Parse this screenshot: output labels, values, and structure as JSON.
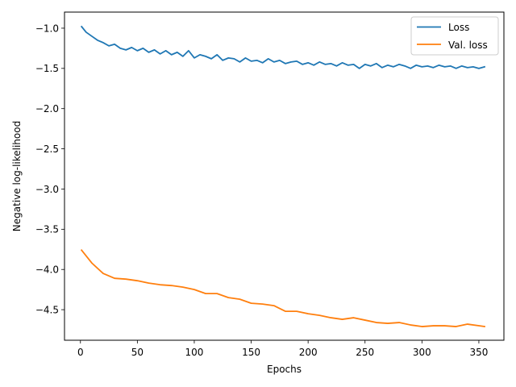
{
  "chart_data": {
    "type": "line",
    "title": "",
    "xlabel": "Epochs",
    "ylabel": "Negative log-likelihood",
    "xlim": [
      -14,
      372
    ],
    "ylim": [
      -4.88,
      -0.8
    ],
    "xticks": [
      0,
      50,
      100,
      150,
      200,
      250,
      300,
      350
    ],
    "yticks": [
      -1.0,
      -1.5,
      -2.0,
      -2.5,
      -3.0,
      -3.5,
      -4.0,
      -4.5
    ],
    "xtick_labels": [
      "0",
      "50",
      "100",
      "150",
      "200",
      "250",
      "300",
      "350"
    ],
    "ytick_labels": [
      "−1.0",
      "−1.5",
      "−2.0",
      "−2.5",
      "−3.0",
      "−3.5",
      "−4.0",
      "−4.5"
    ],
    "grid": false,
    "legend_position": "top-right",
    "series": [
      {
        "name": "Loss",
        "color": "#1f77b4",
        "x": [
          1,
          5,
          10,
          15,
          20,
          25,
          30,
          35,
          40,
          45,
          50,
          55,
          60,
          65,
          70,
          75,
          80,
          85,
          90,
          95,
          100,
          105,
          110,
          115,
          120,
          125,
          130,
          135,
          140,
          145,
          150,
          155,
          160,
          165,
          170,
          175,
          180,
          185,
          190,
          195,
          200,
          205,
          210,
          215,
          220,
          225,
          230,
          235,
          240,
          245,
          250,
          255,
          260,
          265,
          270,
          275,
          280,
          285,
          290,
          295,
          300,
          305,
          310,
          315,
          320,
          325,
          330,
          335,
          340,
          345,
          350,
          355
        ],
        "y": [
          -0.98,
          -1.05,
          -1.1,
          -1.15,
          -1.18,
          -1.22,
          -1.2,
          -1.25,
          -1.27,
          -1.24,
          -1.28,
          -1.25,
          -1.3,
          -1.27,
          -1.32,
          -1.28,
          -1.33,
          -1.3,
          -1.35,
          -1.28,
          -1.37,
          -1.33,
          -1.35,
          -1.38,
          -1.33,
          -1.4,
          -1.37,
          -1.38,
          -1.42,
          -1.37,
          -1.41,
          -1.4,
          -1.43,
          -1.38,
          -1.42,
          -1.4,
          -1.44,
          -1.42,
          -1.41,
          -1.45,
          -1.43,
          -1.46,
          -1.42,
          -1.45,
          -1.44,
          -1.47,
          -1.43,
          -1.46,
          -1.45,
          -1.5,
          -1.45,
          -1.47,
          -1.44,
          -1.49,
          -1.46,
          -1.48,
          -1.45,
          -1.47,
          -1.5,
          -1.46,
          -1.48,
          -1.47,
          -1.49,
          -1.46,
          -1.48,
          -1.47,
          -1.5,
          -1.47,
          -1.49,
          -1.48,
          -1.5,
          -1.48
        ]
      },
      {
        "name": "Val. loss",
        "color": "#ff7f0e",
        "x": [
          1,
          10,
          20,
          30,
          40,
          50,
          60,
          70,
          80,
          90,
          100,
          110,
          120,
          130,
          140,
          150,
          160,
          170,
          180,
          190,
          200,
          210,
          220,
          230,
          240,
          250,
          260,
          270,
          280,
          290,
          300,
          310,
          320,
          330,
          340,
          350,
          355
        ],
        "y": [
          -3.76,
          -3.92,
          -4.05,
          -4.11,
          -4.12,
          -4.14,
          -4.17,
          -4.19,
          -4.2,
          -4.22,
          -4.25,
          -4.3,
          -4.3,
          -4.35,
          -4.37,
          -4.42,
          -4.43,
          -4.45,
          -4.52,
          -4.52,
          -4.55,
          -4.57,
          -4.6,
          -4.62,
          -4.6,
          -4.63,
          -4.66,
          -4.67,
          -4.66,
          -4.69,
          -4.71,
          -4.7,
          -4.7,
          -4.71,
          -4.68,
          -4.7,
          -4.71
        ]
      }
    ]
  }
}
